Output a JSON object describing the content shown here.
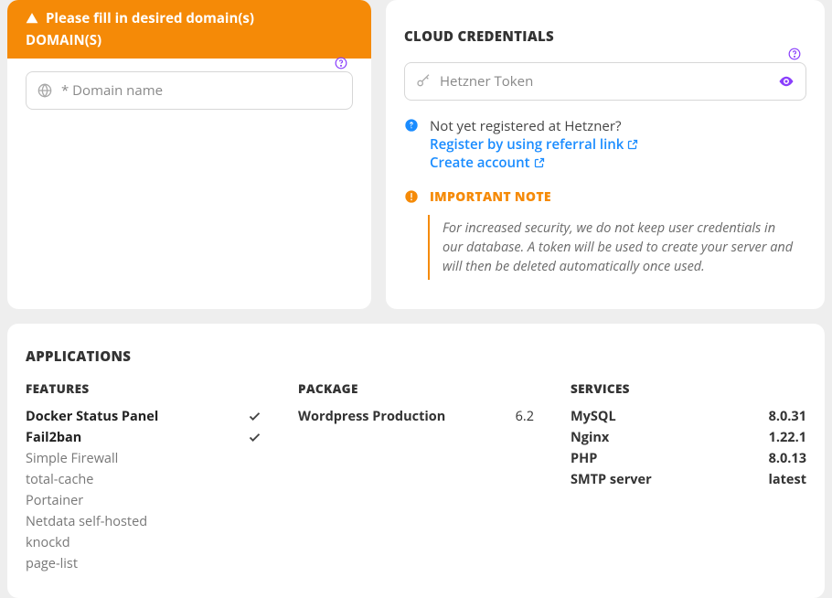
{
  "colors": {
    "accent_orange": "#f58a07",
    "link_blue": "#1a8cff",
    "purple": "#8a3ffc",
    "bg": "#eeeeee",
    "card_bg": "#ffffff"
  },
  "domain_card": {
    "warning": "Please fill in desired domain(s)",
    "title": "DOMAIN(S)",
    "input_placeholder": "* Domain name"
  },
  "cloud_card": {
    "title": "CLOUD CREDENTIALS",
    "input_placeholder": "Hetzner Token",
    "not_registered": "Not yet registered at Hetzner?",
    "referral_link": "Register by using referral link",
    "create_account": "Create account",
    "important_title": "IMPORTANT NOTE",
    "note": "For increased security, we do not keep user credentials in our database. A token will be used to create your server and will then be deleted automatically once used."
  },
  "applications": {
    "title": "APPLICATIONS",
    "features_title": "FEATURES",
    "features": [
      {
        "label": "Docker Status Panel",
        "active": true
      },
      {
        "label": "Fail2ban",
        "active": true
      },
      {
        "label": "Simple Firewall",
        "active": false
      },
      {
        "label": "total-cache",
        "active": false
      },
      {
        "label": "Portainer",
        "active": false
      },
      {
        "label": "Netdata self-hosted",
        "active": false
      },
      {
        "label": "knockd",
        "active": false
      },
      {
        "label": "page-list",
        "active": false
      }
    ],
    "package_title": "PACKAGE",
    "package": {
      "name": "Wordpress Production",
      "version": "6.2"
    },
    "services_title": "SERVICES",
    "services": [
      {
        "name": "MySQL",
        "version": "8.0.31"
      },
      {
        "name": "Nginx",
        "version": "1.22.1"
      },
      {
        "name": "PHP",
        "version": "8.0.13"
      },
      {
        "name": "SMTP server",
        "version": "latest"
      }
    ]
  }
}
